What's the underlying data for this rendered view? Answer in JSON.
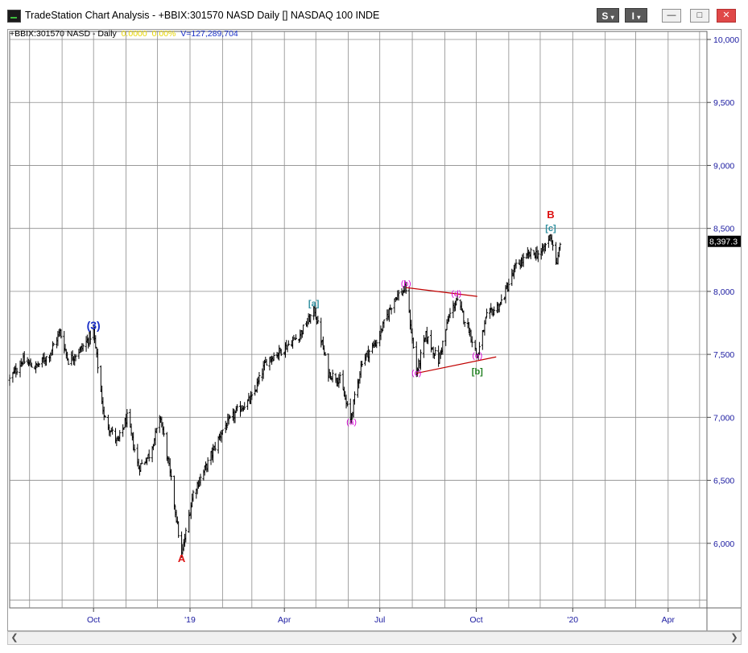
{
  "window": {
    "title": "TradeStation Chart Analysis - +BBIX:301570 NASD Daily [] NASDAQ 100 INDE",
    "buttons": {
      "s_label": "S",
      "i_label": "I",
      "minimize": "—",
      "restore": "□",
      "close": "✕"
    }
  },
  "status_line": {
    "symbol": "+BBIX:301570 NASD - Daily",
    "change": "0.0000",
    "change_pct": "0.00%",
    "volume": "V=127,289,704"
  },
  "last_price_label": "8,397.3",
  "colors": {
    "bars": "#000000",
    "grid": "#8c8c8c",
    "axis_text": "#1a1aa0",
    "triangle": "#c00000",
    "magenta": "#d500d5",
    "teal": "#2f8f9f",
    "green": "#1f7f1f",
    "red": "#dd1111",
    "blue": "#1a2fc8"
  },
  "chart_data": {
    "type": "ohlc",
    "instrument": "NASDAQ 100 INDE",
    "interval": "Daily",
    "ylim": [
      5500,
      10000
    ],
    "y_ticks": [
      6000,
      6500,
      7000,
      7500,
      8000,
      8500,
      9000,
      9500,
      10000
    ],
    "y_tick_labels": [
      "6,000",
      "6,500",
      "7,000",
      "7,500",
      "8,000",
      "8,500",
      "9,000",
      "9,500",
      "10,000"
    ],
    "x_ticks": [
      {
        "label": "Oct",
        "date": "2018-10-01"
      },
      {
        "label": "'19",
        "date": "2019-01-01"
      },
      {
        "label": "Apr",
        "date": "2019-04-01"
      },
      {
        "label": "Jul",
        "date": "2019-07-01"
      },
      {
        "label": "Oct",
        "date": "2019-10-01"
      },
      {
        "label": "'20",
        "date": "2020-01-01"
      },
      {
        "label": "Apr",
        "date": "2020-04-01"
      }
    ],
    "xlim": [
      "2018-07-13",
      "2020-05-08"
    ],
    "path": [
      [
        "2018-07-13",
        7300
      ],
      [
        "2018-07-25",
        7450
      ],
      [
        "2018-08-07",
        7400
      ],
      [
        "2018-08-20",
        7500
      ],
      [
        "2018-08-30",
        7680
      ],
      [
        "2018-09-07",
        7450
      ],
      [
        "2018-09-20",
        7550
      ],
      [
        "2018-10-01",
        7680
      ],
      [
        "2018-10-11",
        7000
      ],
      [
        "2018-10-24",
        6800
      ],
      [
        "2018-11-02",
        7000
      ],
      [
        "2018-11-13",
        6600
      ],
      [
        "2018-11-23",
        6700
      ],
      [
        "2018-12-04",
        7000
      ],
      [
        "2018-12-14",
        6500
      ],
      [
        "2018-12-24",
        5900
      ],
      [
        "2019-01-04",
        6400
      ],
      [
        "2019-01-16",
        6600
      ],
      [
        "2019-02-01",
        6900
      ],
      [
        "2019-02-15",
        7050
      ],
      [
        "2019-03-01",
        7150
      ],
      [
        "2019-03-15",
        7450
      ],
      [
        "2019-04-01",
        7550
      ],
      [
        "2019-04-15",
        7650
      ],
      [
        "2019-04-30",
        7850
      ],
      [
        "2019-05-13",
        7350
      ],
      [
        "2019-05-24",
        7300
      ],
      [
        "2019-06-03",
        6980
      ],
      [
        "2019-06-14",
        7450
      ],
      [
        "2019-06-28",
        7600
      ],
      [
        "2019-07-15",
        7950
      ],
      [
        "2019-07-26",
        8020
      ],
      [
        "2019-08-05",
        7350
      ],
      [
        "2019-08-14",
        7650
      ],
      [
        "2019-08-26",
        7450
      ],
      [
        "2019-09-05",
        7800
      ],
      [
        "2019-09-12",
        7930
      ],
      [
        "2019-09-24",
        7700
      ],
      [
        "2019-10-02",
        7480
      ],
      [
        "2019-10-11",
        7800
      ],
      [
        "2019-10-24",
        7900
      ],
      [
        "2019-11-08",
        8200
      ],
      [
        "2019-11-22",
        8300
      ],
      [
        "2019-12-02",
        8300
      ],
      [
        "2019-12-11",
        8450
      ],
      [
        "2019-12-17",
        8200
      ],
      [
        "2019-12-20",
        8397.3
      ]
    ],
    "annotations": [
      {
        "text": "(3)",
        "date": "2018-10-01",
        "price": 7700,
        "color": "blue"
      },
      {
        "text": "A",
        "date": "2018-12-24",
        "price": 5850,
        "color": "red"
      },
      {
        "text": "[a]",
        "date": "2019-04-29",
        "price": 7880,
        "color": "teal"
      },
      {
        "text": "(a)",
        "date": "2019-06-04",
        "price": 6940,
        "color": "magenta"
      },
      {
        "text": "(b)",
        "date": "2019-07-26",
        "price": 8040,
        "color": "magenta"
      },
      {
        "text": "(c)",
        "date": "2019-08-05",
        "price": 7330,
        "color": "magenta"
      },
      {
        "text": "(d)",
        "date": "2019-09-12",
        "price": 7960,
        "color": "magenta"
      },
      {
        "text": "(e)",
        "date": "2019-10-02",
        "price": 7470,
        "color": "magenta"
      },
      {
        "text": "[b]",
        "date": "2019-10-02",
        "price": 7340,
        "color": "green"
      },
      {
        "text": "[c]",
        "date": "2019-12-11",
        "price": 8480,
        "color": "teal"
      },
      {
        "text": "B",
        "date": "2019-12-11",
        "price": 8580,
        "color": "red"
      }
    ],
    "trendlines": [
      {
        "from": [
          "2019-07-26",
          8030
        ],
        "to": [
          "2019-10-02",
          7960
        ]
      },
      {
        "from": [
          "2019-08-05",
          7350
        ],
        "to": [
          "2019-10-20",
          7480
        ]
      }
    ]
  }
}
